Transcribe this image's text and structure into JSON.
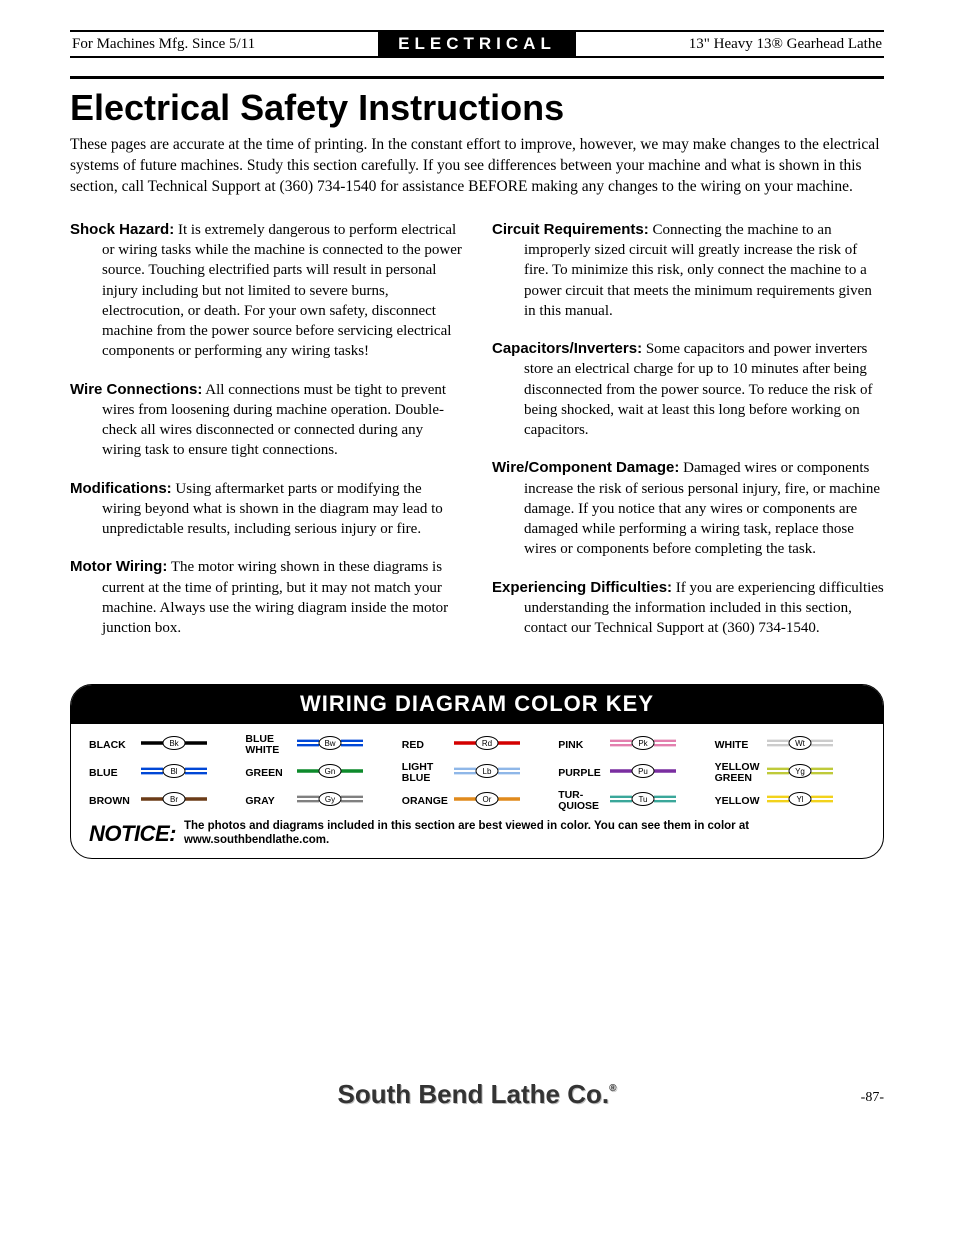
{
  "header": {
    "left": "For Machines Mfg. Since 5/11",
    "center": "ELECTRICAL",
    "right": "13\" Heavy 13® Gearhead Lathe"
  },
  "title": "Electrical Safety Instructions",
  "intro": "These pages are accurate at the time of printing. In the constant effort to improve, however, we may make changes to the electrical systems of future machines. Study this section carefully. If you see differences between your machine and what is shown in this section, call Technical Support at (360) 734-1540 for assistance BEFORE making any changes to the wiring on your machine.",
  "left_items": [
    {
      "title": "Shock Hazard:",
      "body": " It is extremely dangerous to perform electrical or wiring tasks while the machine is connected to the power source. Touching electrified parts will result in personal injury including but not limited to severe burns, electrocution, or death. For your own safety, disconnect machine from the power source before servicing electrical components or performing any wiring tasks!"
    },
    {
      "title": "Wire Connections:",
      "body": " All connections must be tight to prevent wires from loosening during machine operation. Double-check all wires disconnected or connected during any wiring task to ensure tight connections."
    },
    {
      "title": "Modifications:",
      "body": " Using aftermarket parts or modifying the wiring beyond what is shown in the diagram may lead to unpredictable results, including serious injury or fire."
    },
    {
      "title": "Motor Wiring:",
      "body": " The motor wiring shown in these diagrams is current at the time of printing, but it may not match your machine. Always use the wiring diagram inside the motor junction box."
    }
  ],
  "right_items": [
    {
      "title": "Circuit Requirements:",
      "body": " Connecting the machine to an improperly sized circuit will greatly increase the risk of fire. To minimize this risk, only connect the machine to a power circuit that meets the minimum requirements given in this manual."
    },
    {
      "title": "Capacitors/Inverters:",
      "body": " Some capacitors and power inverters store an electrical charge for up to 10 minutes after being disconnected from the power source. To reduce the risk of being shocked, wait at least this long before working on capacitors."
    },
    {
      "title": "Wire/Component Damage:",
      "body": " Damaged wires or components increase the risk of serious personal injury, fire, or machine damage. If you notice that any wires or components are damaged while performing a wiring task, replace those wires or components before completing the task."
    },
    {
      "title": "Experiencing Difficulties:",
      "body": " If you are experiencing difficulties understanding the information included in this section, contact our Technical Support at (360) 734-1540."
    }
  ],
  "color_key": {
    "title": "WIRING DIAGRAM COLOR KEY",
    "swatches": [
      {
        "label": "BLACK",
        "abbr": "Bk",
        "hex": "#000000",
        "double": false
      },
      {
        "label": "BLUE WHITE",
        "abbr": "Bw",
        "hex": "#0047d6",
        "double": true
      },
      {
        "label": "RED",
        "abbr": "Rd",
        "hex": "#d40000",
        "double": false
      },
      {
        "label": "PINK",
        "abbr": "Pk",
        "hex": "#e37fae",
        "double": true
      },
      {
        "label": "WHITE",
        "abbr": "Wt",
        "hex": "#cccccc",
        "double": true
      },
      {
        "label": "BLUE",
        "abbr": "Bl",
        "hex": "#0047d6",
        "double": true
      },
      {
        "label": "GREEN",
        "abbr": "Gn",
        "hex": "#0d8a2b",
        "double": false
      },
      {
        "label": "LIGHT BLUE",
        "abbr": "Lb",
        "hex": "#8fb7e8",
        "double": true
      },
      {
        "label": "PURPLE",
        "abbr": "Pu",
        "hex": "#7a2ea0",
        "double": false
      },
      {
        "label": "YELLOW GREEN",
        "abbr": "Yg",
        "hex": "#bfca3a",
        "double": true
      },
      {
        "label": "BROWN",
        "abbr": "Br",
        "hex": "#6b3b17",
        "double": false
      },
      {
        "label": "GRAY",
        "abbr": "Gy",
        "hex": "#808080",
        "double": true
      },
      {
        "label": "ORANGE",
        "abbr": "Or",
        "hex": "#e08a1c",
        "double": false
      },
      {
        "label": "TUR-QUIOSE",
        "abbr": "Tu",
        "hex": "#3aa79a",
        "double": true
      },
      {
        "label": "YELLOW",
        "abbr": "Yl",
        "hex": "#f2d21c",
        "double": true
      }
    ],
    "notice_lead": "NOTICE:",
    "notice_text": "The photos and diagrams included in this section are best viewed in color. You can see them in color at www.southbendlathe.com."
  },
  "footer": {
    "company": "South Bend Lathe Co.",
    "page": "-87-"
  }
}
